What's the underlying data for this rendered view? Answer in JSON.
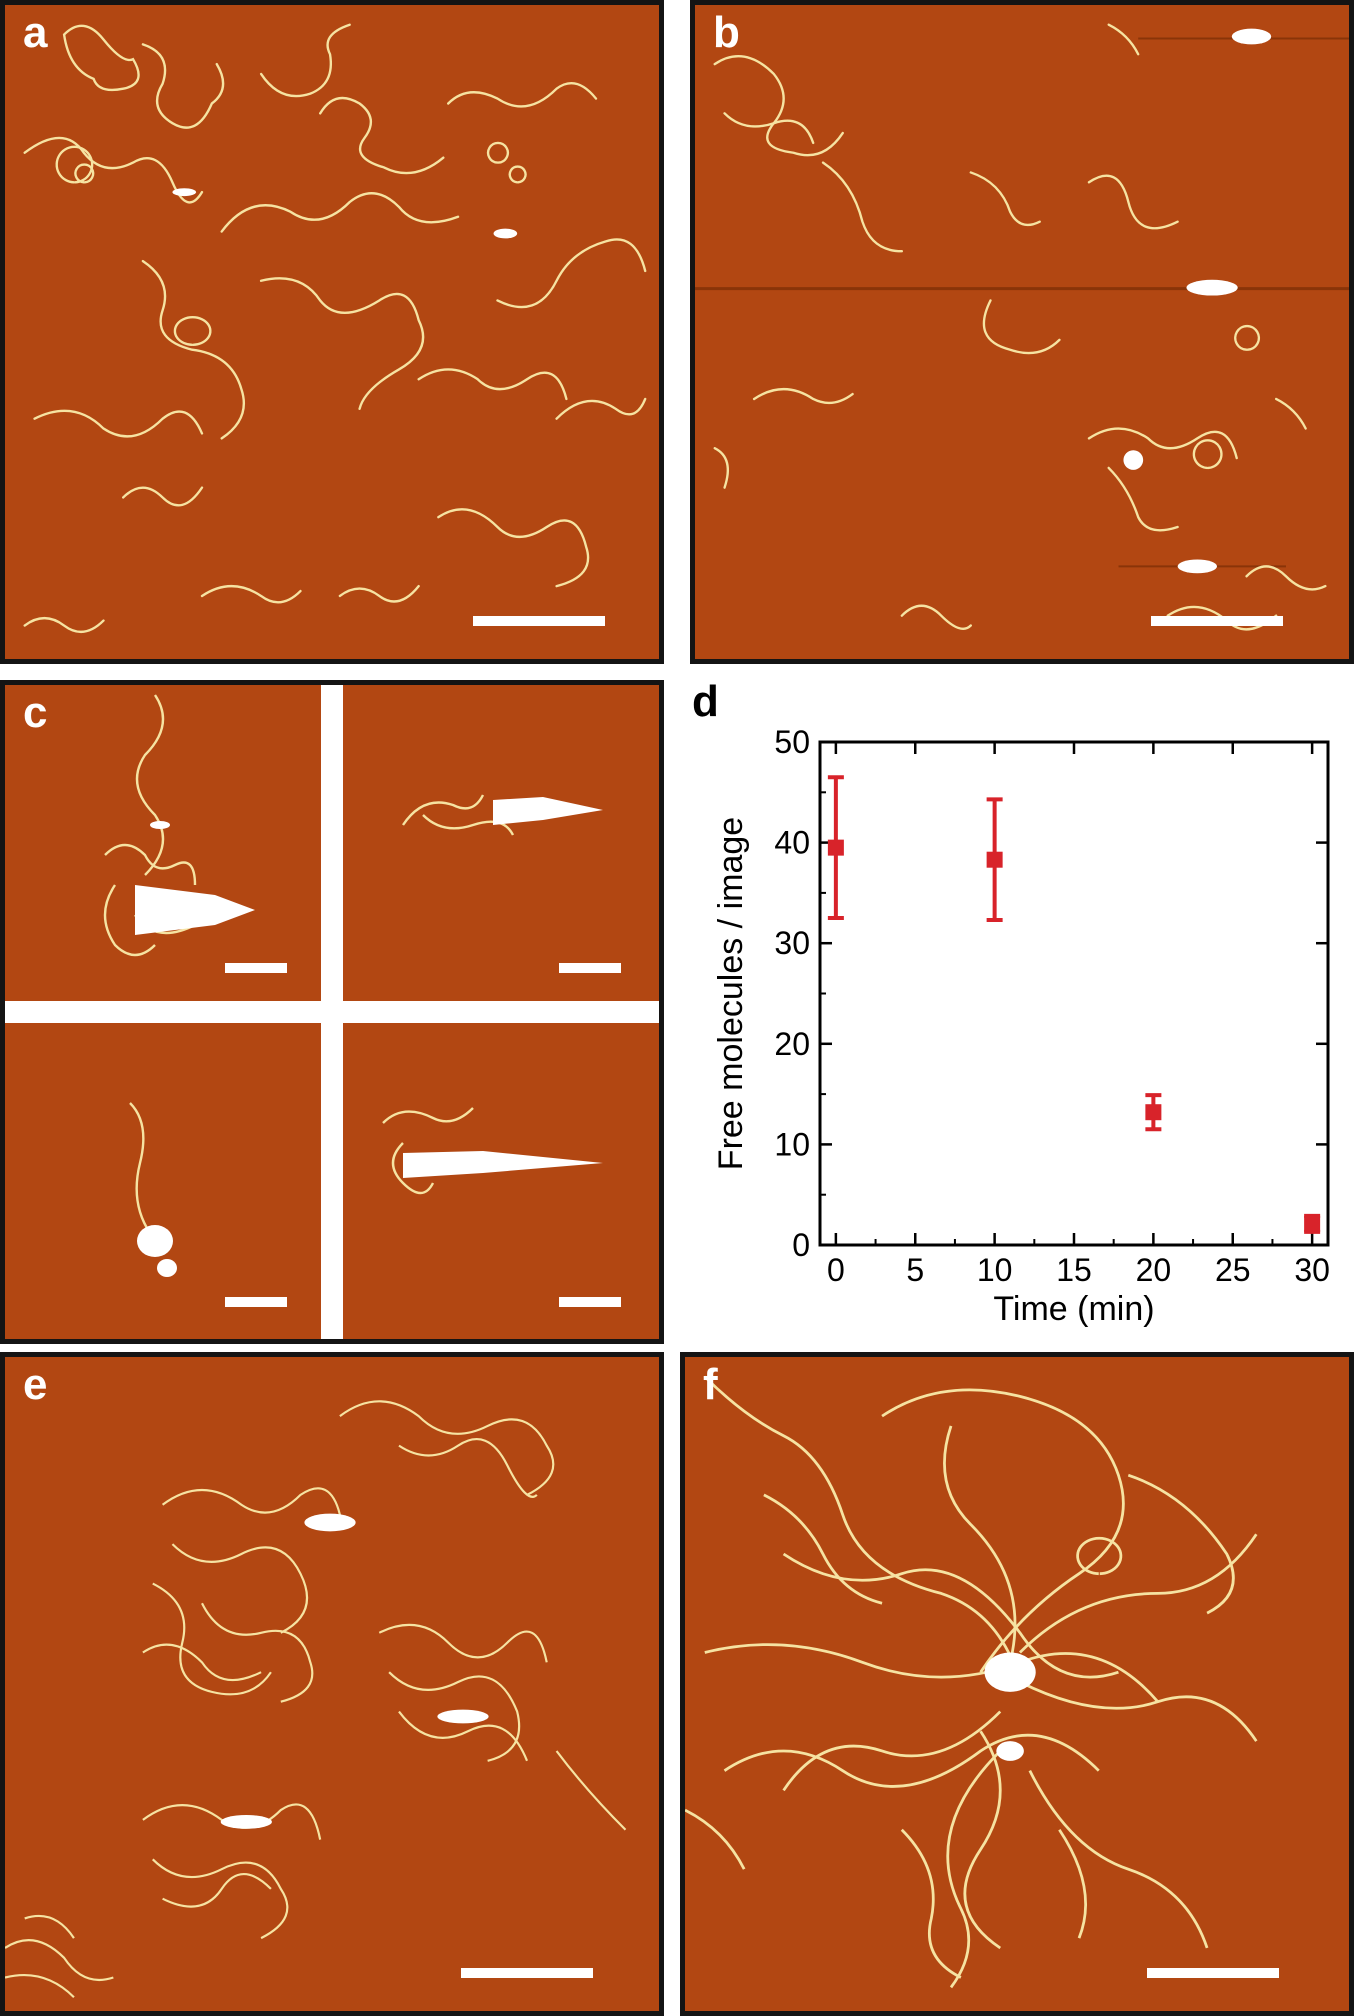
{
  "panels": {
    "a": {
      "label": "a"
    },
    "b": {
      "label": "b"
    },
    "c": {
      "label": "c"
    },
    "d": {
      "label": "d"
    },
    "e": {
      "label": "e"
    },
    "f": {
      "label": "f"
    }
  },
  "colors": {
    "afm_background": "#b24712",
    "strand": "#f6e3a2",
    "cluster": "#ffffff",
    "marker": "#d8232a"
  },
  "chart_data": {
    "type": "scatter",
    "xlabel": "Time (min)",
    "ylabel": "Free molecules / image",
    "xlim": [
      -1,
      31
    ],
    "ylim": [
      0,
      50
    ],
    "xticks": [
      0,
      5,
      10,
      15,
      20,
      25,
      30
    ],
    "yticks": [
      0,
      10,
      20,
      30,
      40,
      50
    ],
    "series": [
      {
        "x": [
          0,
          10,
          20,
          30
        ],
        "y": [
          39.5,
          38.3,
          13.2,
          2.1
        ],
        "err": [
          7.0,
          6.0,
          1.7,
          0.8
        ]
      }
    ],
    "grid": false
  }
}
